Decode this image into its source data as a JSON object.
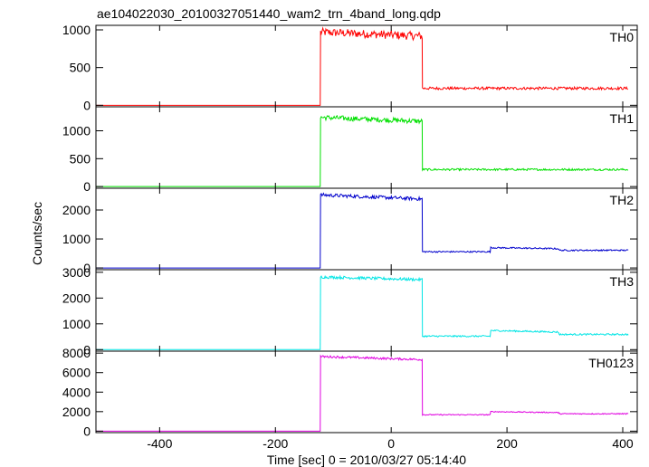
{
  "chart_data": {
    "type": "line",
    "title": "ae104022030_20100327051440_wam2_trn_4band_long.qdp",
    "xlabel": "Time [sec] 0 = 2010/03/27 05:14:40",
    "ylabel": "Counts/sec",
    "xlim": [
      -510,
      425
    ],
    "xticks": [
      -400,
      -200,
      0,
      200,
      400
    ],
    "panels": [
      {
        "name": "TH0",
        "color": "#ff0000",
        "ylim": [
          -20,
          1060
        ],
        "yticks": [
          0,
          500,
          1000
        ],
        "segments": [
          {
            "x0": -510,
            "x1": -122,
            "level": 0,
            "noise": 0,
            "slope": 0
          },
          {
            "x0": -122,
            "x1": 54,
            "level": 970,
            "noise": 55,
            "slope": -0.3
          },
          {
            "x0": 54,
            "x1": 410,
            "level": 225,
            "noise": 18,
            "slope": 0
          }
        ]
      },
      {
        "name": "TH1",
        "color": "#00e000",
        "ylim": [
          -30,
          1430
        ],
        "yticks": [
          0,
          500,
          1000
        ],
        "segments": [
          {
            "x0": -510,
            "x1": -122,
            "level": 0,
            "noise": 0,
            "slope": 0
          },
          {
            "x0": -122,
            "x1": 54,
            "level": 1240,
            "noise": 45,
            "slope": -0.4
          },
          {
            "x0": 54,
            "x1": 410,
            "level": 305,
            "noise": 18,
            "slope": 0
          }
        ]
      },
      {
        "name": "TH2",
        "color": "#0000cc",
        "ylim": [
          -60,
          2750
        ],
        "yticks": [
          0,
          1000,
          2000
        ],
        "segments": [
          {
            "x0": -510,
            "x1": -122,
            "level": 0,
            "noise": 0,
            "slope": 0
          },
          {
            "x0": -122,
            "x1": 54,
            "level": 2520,
            "noise": 60,
            "slope": -0.8
          },
          {
            "x0": 54,
            "x1": 172,
            "level": 560,
            "noise": 25,
            "slope": 0
          },
          {
            "x0": 172,
            "x1": 290,
            "level": 700,
            "noise": 25,
            "slope": -0.3
          },
          {
            "x0": 290,
            "x1": 410,
            "level": 610,
            "noise": 25,
            "slope": 0
          }
        ]
      },
      {
        "name": "TH3",
        "color": "#00e5e5",
        "ylim": [
          -60,
          3100
        ],
        "yticks": [
          0,
          1000,
          2000,
          3000
        ],
        "segments": [
          {
            "x0": -510,
            "x1": -122,
            "level": 0,
            "noise": 0,
            "slope": 0
          },
          {
            "x0": -122,
            "x1": 54,
            "level": 2820,
            "noise": 55,
            "slope": -0.6
          },
          {
            "x0": 54,
            "x1": 172,
            "level": 520,
            "noise": 30,
            "slope": 0
          },
          {
            "x0": 172,
            "x1": 290,
            "level": 740,
            "noise": 30,
            "slope": -0.5
          },
          {
            "x0": 290,
            "x1": 410,
            "level": 590,
            "noise": 30,
            "slope": 0
          }
        ]
      },
      {
        "name": "TH0123",
        "color": "#e000e0",
        "ylim": [
          -150,
          8200
        ],
        "yticks": [
          0,
          2000,
          4000,
          6000,
          8000
        ],
        "segments": [
          {
            "x0": -510,
            "x1": -122,
            "level": 0,
            "noise": 0,
            "slope": 0
          },
          {
            "x0": -122,
            "x1": 54,
            "level": 7650,
            "noise": 110,
            "slope": -1.8
          },
          {
            "x0": 54,
            "x1": 172,
            "level": 1680,
            "noise": 50,
            "slope": 0
          },
          {
            "x0": 172,
            "x1": 290,
            "level": 2000,
            "noise": 50,
            "slope": -0.8
          },
          {
            "x0": 290,
            "x1": 410,
            "level": 1780,
            "noise": 50,
            "slope": 0
          }
        ]
      }
    ]
  }
}
